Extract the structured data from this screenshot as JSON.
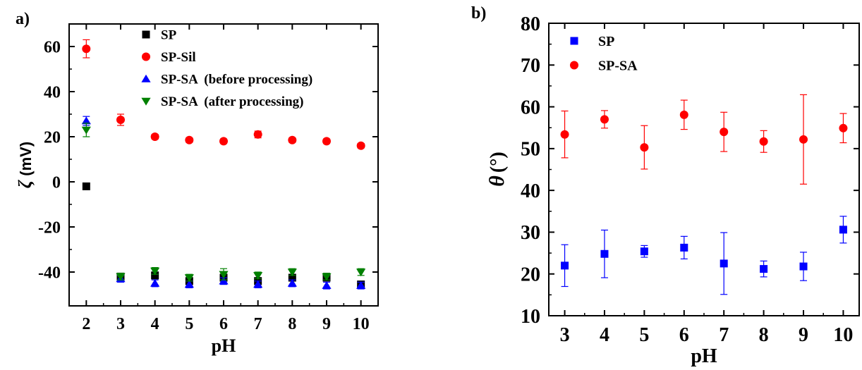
{
  "chart_data": [
    {
      "panel_label": "a)",
      "type": "scatter",
      "xlabel": "pH",
      "ylabel_symbol": "ζ",
      "ylabel_unit": "(mV)",
      "xlim": [
        1.5,
        10.5
      ],
      "ylim": [
        -55,
        70
      ],
      "x_ticks": [
        "2",
        "3",
        "4",
        "5",
        "6",
        "7",
        "8",
        "9",
        "10"
      ],
      "y_ticks": [
        "60",
        "40",
        "20",
        "0",
        "-20",
        "-40"
      ],
      "legend_position": "top-center",
      "series": [
        {
          "name": "SP",
          "marker": "square",
          "color": "#000000",
          "x": [
            2,
            3,
            4,
            5,
            6,
            7,
            8,
            9,
            10
          ],
          "y": [
            -2,
            -42,
            -41.5,
            -44,
            -42.5,
            -44,
            -42.5,
            -42.5,
            -45.5
          ],
          "err": [
            0,
            1.5,
            1.5,
            1.5,
            1.5,
            1.5,
            1.5,
            1.5,
            1.5
          ]
        },
        {
          "name": "SP-Sil",
          "marker": "circle",
          "color": "#ff0000",
          "x": [
            2,
            3,
            4,
            5,
            6,
            7,
            8,
            9,
            10
          ],
          "y": [
            59,
            27.5,
            20,
            18.5,
            18,
            21,
            18.5,
            18,
            16
          ],
          "err": [
            4,
            2.5,
            1,
            1,
            1,
            1.5,
            1,
            1,
            1
          ]
        },
        {
          "name": "SP-SA  (before processing)",
          "marker": "triangle-up",
          "color": "#0000ff",
          "x": [
            2,
            3,
            4,
            5,
            6,
            7,
            8,
            9,
            10
          ],
          "y": [
            27,
            -43,
            -45,
            -45.5,
            -44,
            -45.5,
            -45,
            -46,
            -46
          ],
          "err": [
            2,
            1.5,
            1.5,
            1.5,
            1.5,
            1.5,
            1.5,
            1.5,
            1.5
          ]
        },
        {
          "name": "SP-SA  (after processing)",
          "marker": "triangle-down",
          "color": "#008000",
          "x": [
            2,
            3,
            4,
            5,
            6,
            7,
            8,
            9,
            10
          ],
          "y": [
            23,
            -42,
            -39.5,
            -42.5,
            -41,
            -41.5,
            -40,
            -42,
            -40
          ],
          "err": [
            3,
            1.5,
            1.5,
            1.5,
            2.5,
            1.5,
            1.5,
            1.5,
            1.5
          ]
        }
      ]
    },
    {
      "panel_label": "b)",
      "type": "scatter",
      "xlabel": "pH",
      "ylabel_symbol": "θ",
      "ylabel_unit": "(°)",
      "xlim": [
        2.6,
        10.4
      ],
      "ylim": [
        10,
        80
      ],
      "x_ticks": [
        "3",
        "4",
        "5",
        "6",
        "7",
        "8",
        "9",
        "10"
      ],
      "y_ticks": [
        "10",
        "20",
        "30",
        "40",
        "50",
        "60",
        "70",
        "80"
      ],
      "legend_position": "top-left",
      "series": [
        {
          "name": "SP",
          "marker": "square",
          "color": "#0000ff",
          "x": [
            3,
            4,
            5,
            6,
            7,
            8,
            9,
            10
          ],
          "y": [
            22,
            24.8,
            25.4,
            26.3,
            22.5,
            21.2,
            21.8,
            30.6
          ],
          "err": [
            5,
            5.7,
            1.4,
            2.7,
            7.4,
            1.9,
            3.4,
            3.2
          ]
        },
        {
          "name": "SP-SA",
          "marker": "circle",
          "color": "#ff0000",
          "x": [
            3,
            4,
            5,
            6,
            7,
            8,
            9,
            10
          ],
          "y": [
            53.4,
            57,
            50.3,
            58.1,
            54,
            51.7,
            52.2,
            54.9
          ],
          "err": [
            5.6,
            2.1,
            5.2,
            3.5,
            4.7,
            2.6,
            10.7,
            3.5
          ]
        }
      ]
    }
  ]
}
